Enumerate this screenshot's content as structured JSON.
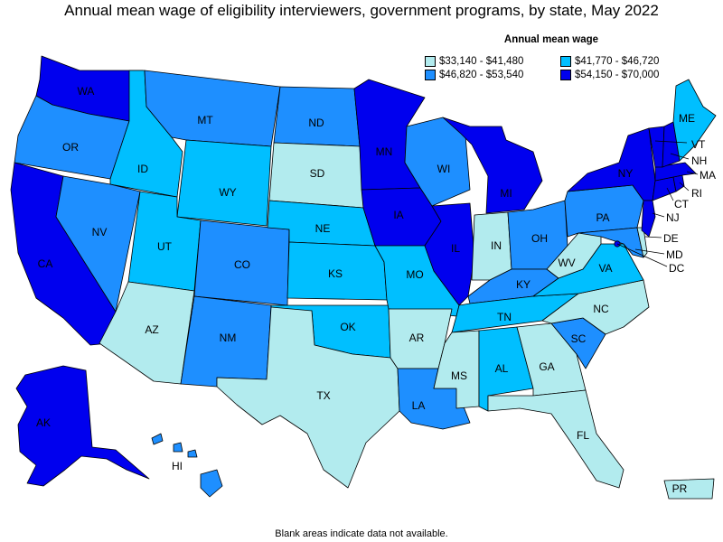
{
  "title": "Annual mean wage of eligibility interviewers, government programs, by state, May 2022",
  "legend": {
    "title": "Annual mean wage",
    "bins": [
      {
        "label": "$33,140 - $41,480",
        "color": "#b2ebee"
      },
      {
        "label": "$41,770 - $46,720",
        "color": "#00bfff"
      },
      {
        "label": "$46,820 - $53,540",
        "color": "#1e8fff"
      },
      {
        "label": "$54,150 - $70,000",
        "color": "#0000ee"
      }
    ]
  },
  "footnote": "Blank areas indicate data not available.",
  "states": [
    {
      "abbr": "WA",
      "bin": 3
    },
    {
      "abbr": "OR",
      "bin": 2
    },
    {
      "abbr": "CA",
      "bin": 3
    },
    {
      "abbr": "ID",
      "bin": 1
    },
    {
      "abbr": "NV",
      "bin": 2
    },
    {
      "abbr": "MT",
      "bin": 2
    },
    {
      "abbr": "WY",
      "bin": 1
    },
    {
      "abbr": "UT",
      "bin": 1
    },
    {
      "abbr": "CO",
      "bin": 2
    },
    {
      "abbr": "AZ",
      "bin": 0
    },
    {
      "abbr": "NM",
      "bin": 2
    },
    {
      "abbr": "ND",
      "bin": 2
    },
    {
      "abbr": "SD",
      "bin": 0
    },
    {
      "abbr": "NE",
      "bin": 1
    },
    {
      "abbr": "KS",
      "bin": 1
    },
    {
      "abbr": "OK",
      "bin": 1
    },
    {
      "abbr": "TX",
      "bin": 0
    },
    {
      "abbr": "MN",
      "bin": 3
    },
    {
      "abbr": "IA",
      "bin": 3
    },
    {
      "abbr": "MO",
      "bin": 1
    },
    {
      "abbr": "AR",
      "bin": 0
    },
    {
      "abbr": "LA",
      "bin": 2
    },
    {
      "abbr": "WI",
      "bin": 2
    },
    {
      "abbr": "IL",
      "bin": 3
    },
    {
      "abbr": "MI",
      "bin": 3
    },
    {
      "abbr": "IN",
      "bin": 0
    },
    {
      "abbr": "OH",
      "bin": 2
    },
    {
      "abbr": "KY",
      "bin": 2
    },
    {
      "abbr": "TN",
      "bin": 1
    },
    {
      "abbr": "MS",
      "bin": 0
    },
    {
      "abbr": "AL",
      "bin": 1
    },
    {
      "abbr": "GA",
      "bin": 0
    },
    {
      "abbr": "FL",
      "bin": 0
    },
    {
      "abbr": "SC",
      "bin": 2
    },
    {
      "abbr": "NC",
      "bin": 0
    },
    {
      "abbr": "VA",
      "bin": 1
    },
    {
      "abbr": "WV",
      "bin": 0
    },
    {
      "abbr": "PA",
      "bin": 2
    },
    {
      "abbr": "NY",
      "bin": 3
    },
    {
      "abbr": "ME",
      "bin": 1
    },
    {
      "abbr": "VT",
      "bin": 3
    },
    {
      "abbr": "NH",
      "bin": 3
    },
    {
      "abbr": "MA",
      "bin": 3
    },
    {
      "abbr": "RI",
      "bin": 3
    },
    {
      "abbr": "CT",
      "bin": 3
    },
    {
      "abbr": "NJ",
      "bin": 3
    },
    {
      "abbr": "DE",
      "bin": 0
    },
    {
      "abbr": "MD",
      "bin": 2
    },
    {
      "abbr": "DC",
      "bin": 3
    },
    {
      "abbr": "AK",
      "bin": 3
    },
    {
      "abbr": "HI",
      "bin": 2
    },
    {
      "abbr": "PR",
      "bin": 0
    }
  ]
}
